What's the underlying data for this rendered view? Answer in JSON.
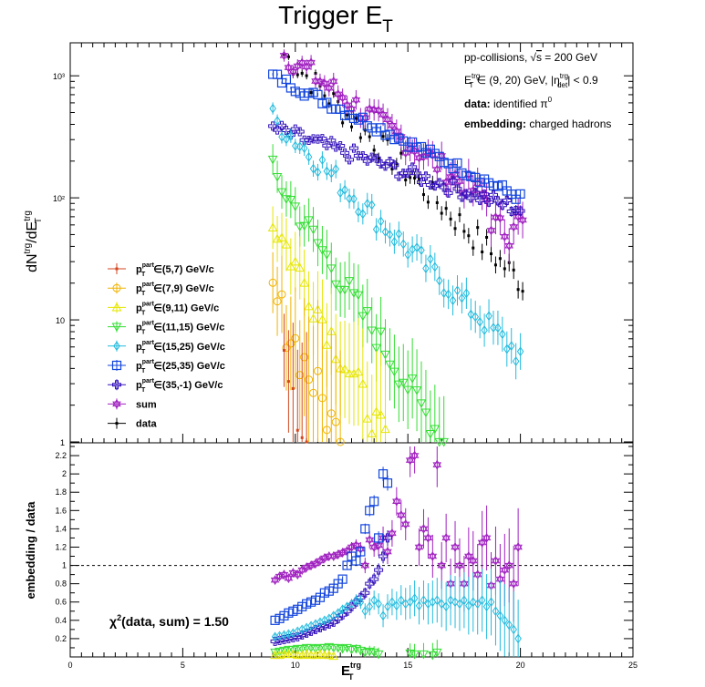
{
  "title": "Trigger E",
  "title_sub": "T",
  "colors": {
    "s57": "#d2461e",
    "s79": "#f0b400",
    "s911": "#e6e600",
    "s1115": "#33dd33",
    "s1525": "#22bbdd",
    "s2535": "#1144dd",
    "s35": "#3311bb",
    "sum": "#a020c0",
    "data": "#000000"
  },
  "info": {
    "line1_a": "pp-collisions,",
    "line1_sqrt": "√",
    "line1_s": "s",
    "line1_b": " = 200 GeV",
    "line2_E": "E",
    "line2_sup": "trg",
    "line2_sub": "T",
    "line2_mid": " ∈ (9, 20) GeV, |η",
    "line2_eta_sup": "trg",
    "line2_eta_sub": "det",
    "line2_end": "| < 0.9",
    "line3_bold": "data:",
    "line3_rest": " identified π",
    "line3_sup": "0",
    "line4_bold": "embedding:",
    "line4_rest": " charged hadrons"
  },
  "chi2_label": "χ",
  "chi2_sup": "2",
  "chi2_rest": "(data, sum) = 1.50",
  "top_ylabel": {
    "a": "dN",
    "a_sup": "trg",
    "b": "/dE",
    "b_sup": "trg",
    "b_sub": "T"
  },
  "bottom_ylabel": "embedding / data",
  "xlabel": {
    "a": "E",
    "sup": "trg",
    "sub": "T"
  },
  "ref_line": 1,
  "chart_data": [
    {
      "type": "scatter",
      "panel": "top",
      "ylog": true,
      "xlim": [
        0,
        25
      ],
      "ylim": [
        1,
        2000
      ],
      "y_tick_labels": [
        "1",
        "10",
        "10²",
        "10³"
      ],
      "legend": [
        {
          "key": "s57",
          "text": "∈(5,7) GeV/c",
          "marker": "dot"
        },
        {
          "key": "s79",
          "text": "∈(7,9) GeV/c",
          "marker": "circle"
        },
        {
          "key": "s911",
          "text": "∈(9,11) GeV/c",
          "marker": "tri-up"
        },
        {
          "key": "s1115",
          "text": "∈(11,15) GeV/c",
          "marker": "tri-down"
        },
        {
          "key": "s1525",
          "text": "∈(15,25) GeV/c",
          "marker": "diamond"
        },
        {
          "key": "s2535",
          "text": "∈(25,35) GeV/c",
          "marker": "square"
        },
        {
          "key": "s35",
          "text": "∈(35,-1) GeV/c",
          "marker": "cross"
        },
        {
          "key": "sum",
          "text": "sum",
          "marker": "star",
          "plain": true
        },
        {
          "key": "data",
          "text": "data",
          "marker": "dot",
          "plain": true
        }
      ],
      "legend_prefix": "p",
      "legend_prefix_sup": "part",
      "legend_prefix_sub": "T",
      "series": [
        {
          "key": "data",
          "marker": "dot",
          "y0": 1500,
          "y1": 20,
          "x0": 9.5,
          "x1": 20,
          "jitter": 0.12,
          "err": 0.05
        },
        {
          "key": "sum",
          "marker": "star",
          "y0": 1500,
          "y1": 60,
          "x0": 9.5,
          "x1": 20,
          "jitter": 0.1,
          "err": 0.1,
          "tail_drop": true
        },
        {
          "key": "s2535",
          "marker": "square",
          "y0": 1000,
          "y1": 100,
          "x0": 9,
          "x1": 20,
          "jitter": 0.04,
          "err": 0.02
        },
        {
          "key": "s35",
          "marker": "cross",
          "y0": 370,
          "y1": 80,
          "x0": 9,
          "x1": 20,
          "jitter": 0.06,
          "err": 0.03
        },
        {
          "key": "s1525",
          "marker": "diamond",
          "y0": 450,
          "y1": 5,
          "x0": 9,
          "x1": 20,
          "jitter": 0.1,
          "err": 0.1
        },
        {
          "key": "s1115",
          "marker": "tri-down",
          "y0": 160,
          "y1": 1,
          "x0": 9,
          "x1": 16.5,
          "jitter": 0.12,
          "err": 0.25
        },
        {
          "key": "s911",
          "marker": "tri-up",
          "y0": 65,
          "y1": 1,
          "x0": 9,
          "x1": 14,
          "jitter": 0.15,
          "err": 0.35
        },
        {
          "key": "s79",
          "marker": "circle",
          "y0": 16,
          "y1": 1,
          "x0": 9,
          "x1": 12,
          "jitter": 0.2,
          "err": 0.5
        },
        {
          "key": "s57",
          "marker": "dot",
          "y0": 8,
          "y1": 1,
          "x0": 9.5,
          "x1": 10.5,
          "jitter": 0.3,
          "err": 0.6
        }
      ]
    },
    {
      "type": "scatter",
      "panel": "bottom",
      "xlim": [
        0,
        25
      ],
      "ylim": [
        0,
        2.3
      ],
      "x_ticks": [
        0,
        5,
        10,
        15,
        20,
        25
      ],
      "y_ticks": [
        0.2,
        0.4,
        0.6,
        0.8,
        1,
        1.2,
        1.4,
        1.6,
        1.8,
        2,
        2.2
      ],
      "series": [
        {
          "key": "sum",
          "marker": "star",
          "pts": [
            [
              9.1,
              0.84
            ],
            [
              9.3,
              0.88
            ],
            [
              9.5,
              0.9
            ],
            [
              9.7,
              0.86
            ],
            [
              9.9,
              0.92
            ],
            [
              10.1,
              0.9
            ],
            [
              10.3,
              0.95
            ],
            [
              10.5,
              0.98
            ],
            [
              10.7,
              1.0
            ],
            [
              10.9,
              1.02
            ],
            [
              11.1,
              1.05
            ],
            [
              11.3,
              1.08
            ],
            [
              11.5,
              1.1
            ],
            [
              11.7,
              1.1
            ],
            [
              11.9,
              1.12
            ],
            [
              12.1,
              1.14
            ],
            [
              12.3,
              1.16
            ],
            [
              12.5,
              1.2
            ],
            [
              12.7,
              1.22
            ],
            [
              12.9,
              1.18
            ],
            [
              13.1,
              1.0
            ],
            [
              13.3,
              1.28
            ],
            [
              13.5,
              1.2
            ],
            [
              13.7,
              1.22
            ],
            [
              13.9,
              1.3
            ],
            [
              14.1,
              1.15
            ],
            [
              14.3,
              1.35
            ],
            [
              14.5,
              1.7
            ],
            [
              14.7,
              1.55
            ],
            [
              14.9,
              1.45
            ],
            [
              15.1,
              2.15
            ],
            [
              15.3,
              2.2
            ],
            [
              15.5,
              1.2
            ],
            [
              15.7,
              1.4
            ],
            [
              15.9,
              1.3
            ],
            [
              16.1,
              1.1
            ],
            [
              16.3,
              2.1
            ],
            [
              16.5,
              1.0
            ],
            [
              16.7,
              1.3
            ],
            [
              16.9,
              0.8
            ],
            [
              17.1,
              1.2
            ],
            [
              17.3,
              1.0
            ],
            [
              17.5,
              0.8
            ],
            [
              17.7,
              1.1
            ],
            [
              17.9,
              1.05
            ],
            [
              18.1,
              0.9
            ],
            [
              18.3,
              1.25
            ],
            [
              18.5,
              1.3
            ],
            [
              18.7,
              0.78
            ],
            [
              18.9,
              1.05
            ],
            [
              19.1,
              0.85
            ],
            [
              19.3,
              0.95
            ],
            [
              19.5,
              1.0
            ],
            [
              19.7,
              0.8
            ],
            [
              19.9,
              1.2
            ]
          ]
        },
        {
          "key": "s2535",
          "marker": "square",
          "pts": [
            [
              9.1,
              0.4
            ],
            [
              9.3,
              0.42
            ],
            [
              9.5,
              0.45
            ],
            [
              9.7,
              0.48
            ],
            [
              9.9,
              0.5
            ],
            [
              10.1,
              0.52
            ],
            [
              10.3,
              0.55
            ],
            [
              10.5,
              0.58
            ],
            [
              10.7,
              0.6
            ],
            [
              10.9,
              0.62
            ],
            [
              11.1,
              0.65
            ],
            [
              11.3,
              0.7
            ],
            [
              11.5,
              0.72
            ],
            [
              11.7,
              0.75
            ],
            [
              11.9,
              0.8
            ],
            [
              12.1,
              0.85
            ],
            [
              12.3,
              1.0
            ],
            [
              12.5,
              1.1
            ],
            [
              12.7,
              1.05
            ],
            [
              12.9,
              1.15
            ],
            [
              13.1,
              1.4
            ],
            [
              13.3,
              1.6
            ],
            [
              13.5,
              1.7
            ],
            [
              13.7,
              1.3
            ],
            [
              13.9,
              2.0
            ],
            [
              14.1,
              1.9
            ]
          ]
        },
        {
          "key": "s35",
          "marker": "cross",
          "pts": [
            [
              9.1,
              0.17
            ],
            [
              9.3,
              0.18
            ],
            [
              9.5,
              0.19
            ],
            [
              9.7,
              0.2
            ],
            [
              9.9,
              0.21
            ],
            [
              10.1,
              0.22
            ],
            [
              10.3,
              0.24
            ],
            [
              10.5,
              0.26
            ],
            [
              10.7,
              0.28
            ],
            [
              10.9,
              0.3
            ],
            [
              11.1,
              0.32
            ],
            [
              11.3,
              0.34
            ],
            [
              11.5,
              0.36
            ],
            [
              11.7,
              0.38
            ],
            [
              11.9,
              0.42
            ],
            [
              12.1,
              0.46
            ],
            [
              12.3,
              0.5
            ],
            [
              12.5,
              0.55
            ],
            [
              12.7,
              0.6
            ],
            [
              12.9,
              0.65
            ],
            [
              13.1,
              0.7
            ],
            [
              13.3,
              0.8
            ],
            [
              13.5,
              0.85
            ],
            [
              13.7,
              0.95
            ],
            [
              13.9,
              1.1
            ],
            [
              14.1,
              1.3
            ]
          ]
        },
        {
          "key": "s1525",
          "marker": "diamond",
          "pts": [
            [
              9.1,
              0.22
            ],
            [
              9.3,
              0.23
            ],
            [
              9.5,
              0.24
            ],
            [
              9.7,
              0.25
            ],
            [
              9.9,
              0.26
            ],
            [
              10.1,
              0.28
            ],
            [
              10.3,
              0.3
            ],
            [
              10.5,
              0.32
            ],
            [
              10.7,
              0.34
            ],
            [
              10.9,
              0.36
            ],
            [
              11.1,
              0.38
            ],
            [
              11.3,
              0.4
            ],
            [
              11.5,
              0.42
            ],
            [
              11.7,
              0.45
            ],
            [
              11.9,
              0.48
            ],
            [
              12.1,
              0.52
            ],
            [
              12.3,
              0.55
            ],
            [
              12.5,
              0.58
            ],
            [
              12.7,
              0.62
            ],
            [
              12.9,
              0.6
            ],
            [
              13.1,
              0.5
            ],
            [
              13.3,
              0.55
            ],
            [
              13.5,
              0.62
            ],
            [
              13.7,
              0.58
            ],
            [
              13.9,
              0.45
            ],
            [
              14.1,
              0.55
            ],
            [
              14.3,
              0.6
            ],
            [
              14.5,
              0.56
            ],
            [
              14.7,
              0.62
            ],
            [
              14.9,
              0.58
            ],
            [
              15.1,
              0.6
            ],
            [
              15.3,
              0.64
            ],
            [
              15.5,
              0.56
            ],
            [
              15.7,
              0.62
            ],
            [
              15.9,
              0.58
            ],
            [
              16.1,
              0.6
            ],
            [
              16.3,
              0.62
            ],
            [
              16.5,
              0.58
            ],
            [
              16.7,
              0.55
            ],
            [
              16.9,
              0.62
            ],
            [
              17.1,
              0.6
            ],
            [
              17.3,
              0.58
            ],
            [
              17.5,
              0.62
            ],
            [
              17.7,
              0.56
            ],
            [
              17.9,
              0.6
            ],
            [
              18.1,
              0.58
            ],
            [
              18.3,
              0.62
            ],
            [
              18.5,
              0.55
            ],
            [
              18.7,
              0.6
            ],
            [
              18.9,
              0.5
            ],
            [
              19.1,
              0.45
            ],
            [
              19.3,
              0.4
            ],
            [
              19.5,
              0.35
            ],
            [
              19.7,
              0.3
            ],
            [
              19.9,
              0.2
            ]
          ]
        },
        {
          "key": "s1115",
          "marker": "tri-down",
          "pts": [
            [
              9.1,
              0.05
            ],
            [
              9.3,
              0.06
            ],
            [
              9.5,
              0.07
            ],
            [
              9.7,
              0.08
            ],
            [
              9.9,
              0.08
            ],
            [
              10.1,
              0.09
            ],
            [
              10.3,
              0.09
            ],
            [
              10.5,
              0.1
            ],
            [
              10.7,
              0.1
            ],
            [
              10.9,
              0.09
            ],
            [
              11.1,
              0.1
            ],
            [
              11.3,
              0.1
            ],
            [
              11.5,
              0.11
            ],
            [
              11.7,
              0.1
            ],
            [
              11.9,
              0.1
            ],
            [
              12.1,
              0.09
            ],
            [
              12.3,
              0.1
            ],
            [
              12.5,
              0.08
            ],
            [
              12.7,
              0.09
            ],
            [
              12.9,
              0.07
            ],
            [
              13.1,
              0.05
            ],
            [
              13.3,
              0.06
            ],
            [
              13.5,
              0.05
            ],
            [
              13.7,
              0.03
            ],
            [
              15.1,
              0.04
            ],
            [
              15.3,
              0.03
            ],
            [
              15.7,
              0.03
            ],
            [
              16.1,
              0.02
            ],
            [
              16.3,
              0.05
            ]
          ]
        },
        {
          "key": "s911",
          "marker": "tri-up",
          "pts": [
            [
              9.1,
              0.02
            ],
            [
              9.3,
              0.02
            ],
            [
              9.5,
              0.03
            ],
            [
              9.7,
              0.03
            ],
            [
              9.9,
              0.03
            ],
            [
              10.1,
              0.02
            ],
            [
              10.3,
              0.02
            ],
            [
              10.5,
              0.03
            ],
            [
              10.7,
              0.02
            ],
            [
              10.9,
              0.02
            ],
            [
              11.1,
              0.03
            ],
            [
              11.3,
              0.02
            ],
            [
              11.5,
              0.02
            ],
            [
              11.7,
              0.01
            ]
          ]
        }
      ]
    }
  ]
}
